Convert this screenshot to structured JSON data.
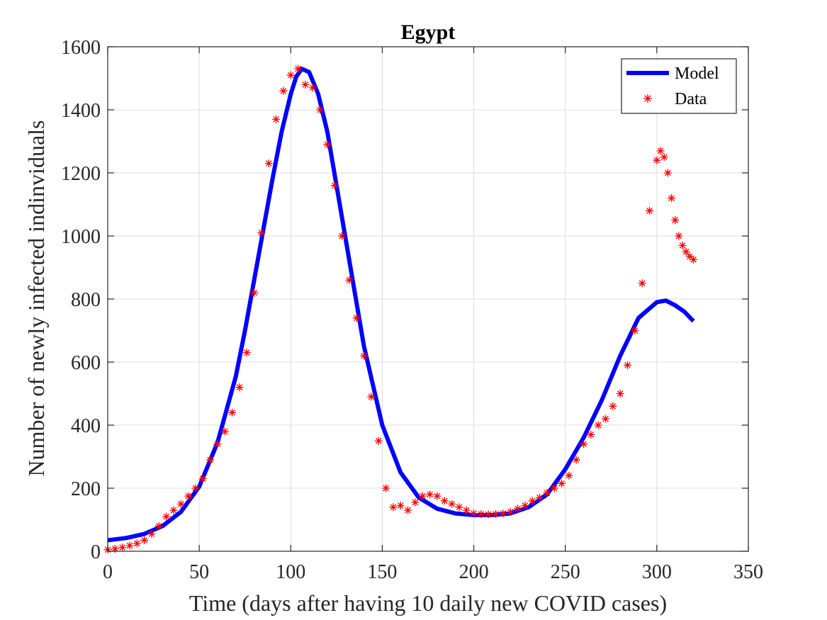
{
  "chart_data": {
    "type": "line",
    "title": "Egypt",
    "xlabel": "Time (days after having 10 daily new COVID cases)",
    "ylabel": "Number of newly infected indinviduals",
    "xlim": [
      0,
      350
    ],
    "ylim": [
      0,
      1600
    ],
    "xticks": [
      0,
      50,
      100,
      150,
      200,
      250,
      300,
      350
    ],
    "yticks": [
      0,
      200,
      400,
      600,
      800,
      1000,
      1200,
      1400,
      1600
    ],
    "grid": true,
    "legend_position": "top-right",
    "series": [
      {
        "name": "Model",
        "style": "line",
        "color": "#0000ff",
        "x": [
          0,
          10,
          20,
          30,
          40,
          50,
          60,
          70,
          75,
          80,
          85,
          90,
          95,
          100,
          103,
          106,
          110,
          115,
          120,
          125,
          130,
          140,
          150,
          160,
          170,
          180,
          190,
          200,
          210,
          220,
          230,
          240,
          250,
          260,
          270,
          280,
          290,
          300,
          305,
          310,
          315,
          320
        ],
        "y": [
          35,
          42,
          55,
          80,
          125,
          205,
          345,
          555,
          700,
          860,
          1020,
          1180,
          1330,
          1450,
          1505,
          1530,
          1520,
          1450,
          1330,
          1160,
          990,
          650,
          400,
          250,
          170,
          135,
          120,
          115,
          115,
          120,
          140,
          180,
          260,
          360,
          480,
          620,
          740,
          790,
          795,
          780,
          760,
          730
        ]
      },
      {
        "name": "Data",
        "style": "star-markers",
        "color": "#ff0000",
        "x": [
          0,
          4,
          8,
          12,
          16,
          20,
          24,
          28,
          32,
          36,
          40,
          44,
          48,
          52,
          56,
          60,
          64,
          68,
          72,
          76,
          80,
          84,
          88,
          92,
          96,
          100,
          104,
          108,
          112,
          116,
          120,
          124,
          128,
          132,
          136,
          140,
          144,
          148,
          152,
          156,
          160,
          164,
          168,
          172,
          176,
          180,
          184,
          188,
          192,
          196,
          200,
          204,
          208,
          212,
          216,
          220,
          224,
          228,
          232,
          236,
          240,
          244,
          248,
          252,
          256,
          260,
          264,
          268,
          272,
          276,
          280,
          284,
          288,
          292,
          296,
          300,
          302,
          304,
          306,
          308,
          310,
          312,
          314,
          316,
          318,
          320
        ],
        "y": [
          5,
          8,
          12,
          18,
          25,
          35,
          55,
          80,
          110,
          130,
          150,
          175,
          200,
          230,
          290,
          340,
          380,
          440,
          520,
          630,
          820,
          1010,
          1230,
          1370,
          1460,
          1510,
          1530,
          1480,
          1470,
          1400,
          1290,
          1160,
          1000,
          860,
          740,
          620,
          490,
          350,
          200,
          140,
          145,
          130,
          155,
          175,
          180,
          175,
          160,
          150,
          140,
          130,
          120,
          118,
          117,
          118,
          120,
          125,
          135,
          145,
          160,
          170,
          185,
          200,
          215,
          240,
          290,
          340,
          370,
          400,
          420,
          460,
          500,
          590,
          700,
          850,
          1080,
          1240,
          1270,
          1250,
          1200,
          1120,
          1050,
          1000,
          970,
          950,
          935,
          925
        ]
      }
    ]
  }
}
